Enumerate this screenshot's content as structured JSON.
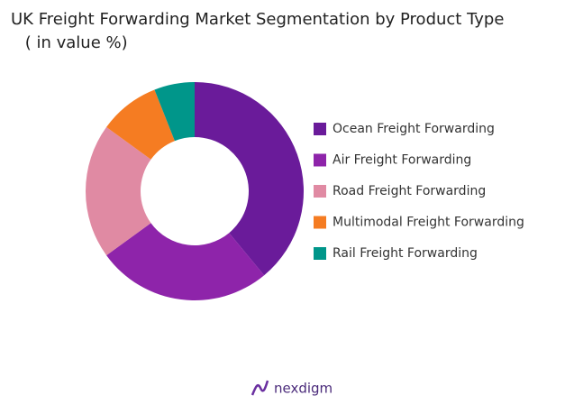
{
  "chart_data": {
    "type": "donut",
    "title": "UK Freight Forwarding Market Segmentation by Product Type",
    "subtitle": " ( in value %)",
    "categories": [
      "Ocean Freight Forwarding",
      "Air Freight Forwarding",
      "Road Freight Forwarding",
      "Multimodal Freight Forwarding",
      "Rail Freight Forwarding"
    ],
    "values": [
      39,
      26,
      20,
      9,
      6
    ],
    "colors": [
      "#6a1b9a",
      "#8e24aa",
      "#e08aa3",
      "#f57c22",
      "#00968a"
    ],
    "legend": "right"
  },
  "logo": "nexdigm"
}
